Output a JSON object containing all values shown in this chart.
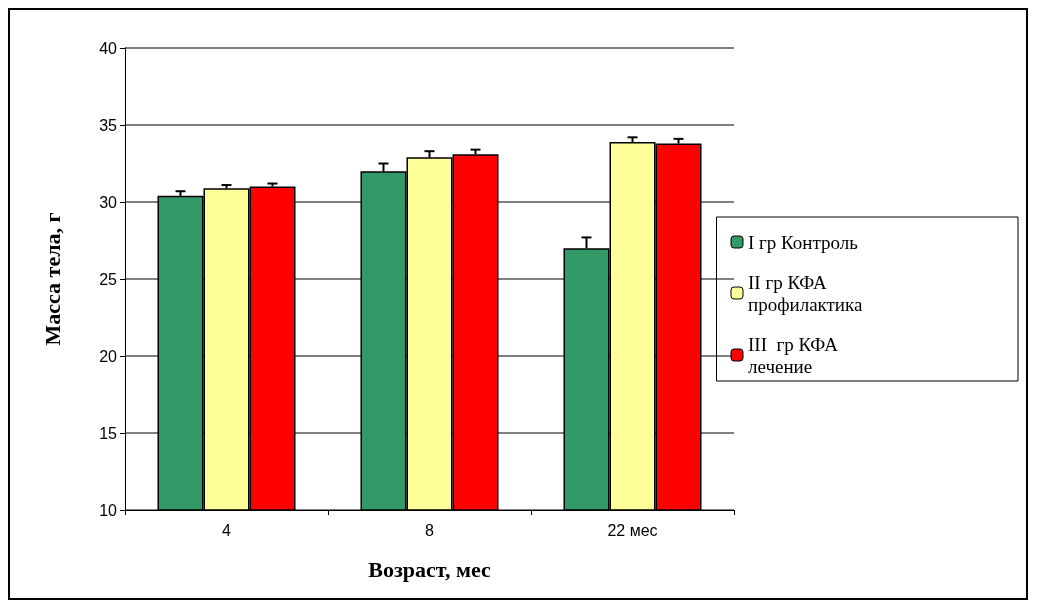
{
  "chart_data": {
    "type": "bar",
    "xlabel": "Возраст, мес",
    "ylabel": "Масса тела, г",
    "categories": [
      "4",
      "8",
      "22 мес"
    ],
    "series": [
      {
        "name": "I гр Контроль",
        "color": "#339966",
        "values": [
          30.4,
          32.0,
          27.0
        ],
        "errors": [
          [
            30.4,
            30.7
          ],
          [
            32.0,
            32.5
          ],
          [
            27.0,
            27.7
          ]
        ]
      },
      {
        "name": "II гр КФА профилактика",
        "color": "#ffff99",
        "values": [
          30.9,
          32.9,
          33.9
        ],
        "errors": [
          [
            30.9,
            31.1
          ],
          [
            32.9,
            33.3
          ],
          [
            33.9,
            34.2
          ]
        ]
      },
      {
        "name": "III  гр КФА лечение",
        "color": "#ff0000",
        "values": [
          31.0,
          33.1,
          33.8
        ],
        "errors": [
          [
            31.0,
            31.2
          ],
          [
            33.1,
            33.4
          ],
          [
            33.8,
            34.1
          ]
        ]
      }
    ],
    "ylim": [
      10,
      40
    ],
    "yticks": [
      10,
      15,
      20,
      25,
      30,
      35,
      40
    ],
    "grid": "y",
    "legend": "right"
  }
}
